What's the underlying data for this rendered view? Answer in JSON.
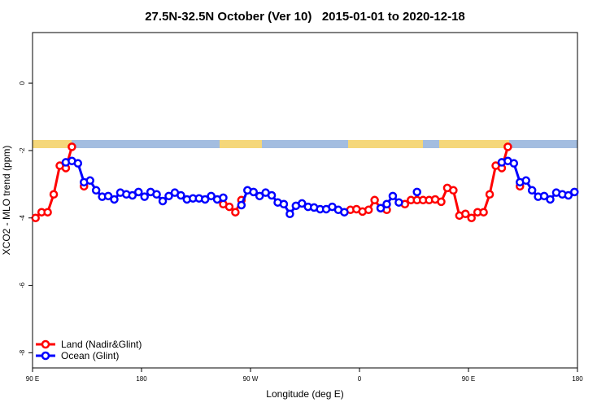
{
  "chart_data": {
    "type": "line",
    "title": "27.5N-32.5N October (Ver 10)   2015-01-01 to 2020-12-18",
    "x_label": "Longitude (deg E)",
    "y_label": "XCO2 - MLO trend (ppm)",
    "x": [
      92.5,
      97.5,
      102.5,
      107.5,
      112.5,
      117.5,
      122.5,
      127.5,
      132.5,
      137.5,
      142.5,
      147.5,
      152.5,
      157.5,
      162.5,
      167.5,
      172.5,
      177.5,
      182.5,
      187.5,
      192.5,
      197.5,
      202.5,
      207.5,
      212.5,
      217.5,
      222.5,
      227.5,
      232.5,
      237.5,
      242.5,
      247.5,
      252.5,
      257.5,
      262.5,
      267.5,
      272.5,
      277.5,
      282.5,
      287.5,
      292.5,
      297.5,
      302.5,
      307.5,
      312.5,
      317.5,
      322.5,
      327.5,
      332.5,
      337.5,
      342.5,
      347.5,
      352.5,
      357.5,
      362.5,
      367.5,
      372.5,
      377.5,
      382.5,
      387.5,
      392.5,
      397.5,
      402.5,
      407.5,
      412.5,
      417.5,
      422.5,
      427.5,
      432.5,
      437.5,
      442.5,
      447.5,
      452.5,
      457.5,
      462.5,
      467.5,
      472.5,
      477.5,
      482.5,
      487.5,
      492.5,
      497.5,
      502.5,
      507.5,
      512.5,
      517.5,
      522.5,
      527.5,
      532.5,
      537.5
    ],
    "series": [
      {
        "name": "Land (Nadir&Glint)",
        "color": "#ff0000",
        "values": [
          -4.0,
          -3.83,
          -3.83,
          -3.3,
          -2.45,
          -2.52,
          -1.89,
          null,
          -3.06,
          null,
          null,
          null,
          null,
          null,
          null,
          null,
          null,
          null,
          null,
          null,
          null,
          null,
          null,
          null,
          null,
          null,
          null,
          null,
          null,
          null,
          null,
          -3.59,
          -3.67,
          -3.83,
          -3.47,
          null,
          null,
          null,
          null,
          null,
          null,
          null,
          null,
          null,
          null,
          null,
          null,
          null,
          null,
          null,
          null,
          null,
          -3.76,
          -3.74,
          -3.81,
          -3.76,
          -3.47,
          -3.71,
          -3.76,
          null,
          null,
          -3.59,
          -3.47,
          -3.47,
          -3.47,
          -3.47,
          -3.45,
          -3.52,
          -3.11,
          -3.18,
          -3.93,
          -3.88,
          -4.0,
          -3.83,
          -3.83,
          -3.3,
          -2.45,
          -2.52,
          -1.89,
          null,
          -3.06,
          null,
          null,
          null,
          null,
          null,
          null,
          null,
          null,
          null
        ]
      },
      {
        "name": "Ocean (Glint)",
        "color": "#0000ff",
        "values": [
          null,
          null,
          null,
          null,
          null,
          -2.35,
          -2.31,
          -2.38,
          -2.94,
          -2.89,
          -3.18,
          -3.37,
          -3.35,
          -3.45,
          -3.25,
          -3.3,
          -3.33,
          -3.23,
          -3.37,
          -3.23,
          -3.3,
          -3.5,
          -3.35,
          -3.25,
          -3.33,
          -3.45,
          -3.42,
          -3.42,
          -3.45,
          -3.35,
          -3.45,
          -3.4,
          null,
          null,
          -3.62,
          -3.18,
          -3.23,
          -3.35,
          -3.25,
          -3.33,
          -3.54,
          -3.59,
          -3.88,
          -3.64,
          -3.57,
          -3.67,
          -3.69,
          -3.74,
          -3.74,
          -3.67,
          -3.76,
          -3.83,
          null,
          null,
          null,
          null,
          null,
          -3.71,
          -3.59,
          -3.35,
          -3.54,
          null,
          null,
          -3.23,
          null,
          null,
          null,
          null,
          null,
          null,
          null,
          null,
          null,
          null,
          null,
          null,
          null,
          -2.35,
          -2.31,
          -2.38,
          -2.94,
          -2.89,
          -3.18,
          -3.37,
          -3.35,
          -3.45,
          -3.25,
          -3.3,
          -3.33,
          -3.23
        ]
      }
    ],
    "xlim": [
      90,
      540
    ],
    "ylim": [
      -8.45,
      1.5
    ],
    "xticks": [
      {
        "value": 90,
        "label": "90 E"
      },
      180,
      {
        "value": 270,
        "label": "90 W"
      },
      {
        "value": 360,
        "label": "0"
      },
      {
        "value": 450,
        "label": "90 E"
      },
      {
        "value": 540,
        "label": "180"
      }
    ],
    "yticks": [
      0,
      -2,
      -4,
      -6,
      -8
    ],
    "legend": "bottom-left"
  }
}
